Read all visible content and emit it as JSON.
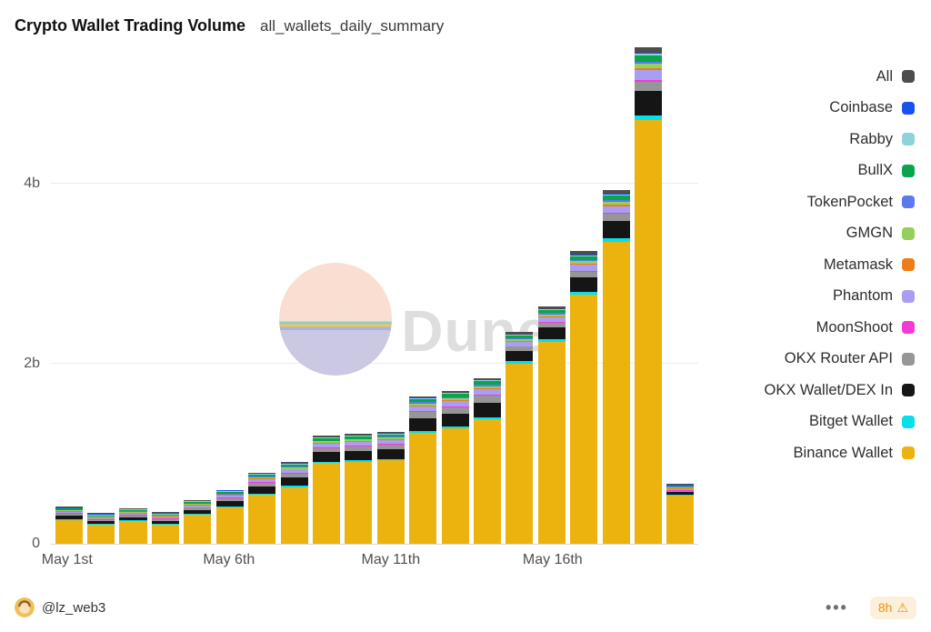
{
  "header": {
    "title": "Crypto Wallet Trading Volume",
    "subtitle": "all_wallets_daily_summary"
  },
  "watermark": {
    "text": "Dune"
  },
  "footer": {
    "author": "@lz_web3",
    "menu_dots": "•••",
    "refresh_badge": {
      "text": "8h",
      "icon": "⚠"
    }
  },
  "chart_data": {
    "type": "bar",
    "stacked": true,
    "title": "Crypto Wallet Trading Volume",
    "subtitle": "all_wallets_daily_summary",
    "unit": "billions USD (b)",
    "grid": "horizontal",
    "legend_position": "right",
    "ylim": [
      0,
      5.6
    ],
    "y_ticks": [
      {
        "value": 0,
        "label": "0"
      },
      {
        "value": 2,
        "label": "2b"
      },
      {
        "value": 4,
        "label": "4b"
      }
    ],
    "x_tick_labels": [
      {
        "index": 0,
        "label": "May 1st"
      },
      {
        "index": 5,
        "label": "May 6th"
      },
      {
        "index": 10,
        "label": "May 11th"
      },
      {
        "index": 15,
        "label": "May 16th"
      }
    ],
    "categories": [
      "May 1",
      "May 2",
      "May 3",
      "May 4",
      "May 5",
      "May 6",
      "May 7",
      "May 8",
      "May 9",
      "May 10",
      "May 11",
      "May 12",
      "May 13",
      "May 14",
      "May 15",
      "May 16",
      "May 17",
      "May 18",
      "May 19",
      "May 20"
    ],
    "approx_daily_totals_b": [
      0.38,
      0.3,
      0.36,
      0.31,
      0.46,
      0.58,
      0.78,
      0.9,
      1.18,
      1.2,
      1.22,
      1.62,
      1.68,
      1.82,
      2.3,
      2.58,
      3.18,
      3.85,
      5.4,
      0.62
    ],
    "legend_order_top_to_bottom": [
      "All",
      "Coinbase",
      "Rabby",
      "BullX",
      "TokenPocket",
      "GMGN",
      "Metamask",
      "Phantom",
      "MoonShoot",
      "OKX Router API",
      "OKX Wallet/DEX In",
      "Bitget Wallet",
      "Binance Wallet"
    ],
    "series": [
      {
        "name": "Binance Wallet",
        "color": "#ecb30e",
        "values": [
          0.266,
          0.21,
          0.252,
          0.217,
          0.322,
          0.406,
          0.546,
          0.63,
          0.897,
          0.912,
          0.927,
          1.231,
          1.277,
          1.383,
          2.001,
          2.245,
          2.767,
          3.35,
          4.698,
          0.539
        ]
      },
      {
        "name": "Bitget Wallet",
        "color": "#06e0ea",
        "values": [
          0.006,
          0.005,
          0.005,
          0.005,
          0.007,
          0.009,
          0.012,
          0.014,
          0.014,
          0.014,
          0.015,
          0.019,
          0.02,
          0.022,
          0.023,
          0.026,
          0.032,
          0.039,
          0.054,
          0.006
        ]
      },
      {
        "name": "OKX Wallet/DEX In",
        "color": "#151515",
        "values": [
          0.038,
          0.03,
          0.036,
          0.031,
          0.046,
          0.058,
          0.078,
          0.09,
          0.106,
          0.108,
          0.11,
          0.146,
          0.151,
          0.164,
          0.115,
          0.129,
          0.159,
          0.193,
          0.27,
          0.031
        ]
      },
      {
        "name": "OKX Router API",
        "color": "#969696",
        "values": [
          0.019,
          0.015,
          0.018,
          0.016,
          0.023,
          0.029,
          0.039,
          0.045,
          0.047,
          0.048,
          0.049,
          0.065,
          0.067,
          0.073,
          0.046,
          0.052,
          0.064,
          0.077,
          0.108,
          0.012
        ]
      },
      {
        "name": "MoonShoot",
        "color": "#f23ad6",
        "values": [
          0.002,
          0.002,
          0.002,
          0.002,
          0.002,
          0.003,
          0.004,
          0.005,
          0.005,
          0.005,
          0.005,
          0.006,
          0.007,
          0.007,
          0.007,
          0.008,
          0.01,
          0.012,
          0.016,
          0.002
        ]
      },
      {
        "name": "Phantom",
        "color": "#a99ef1",
        "values": [
          0.015,
          0.012,
          0.014,
          0.012,
          0.018,
          0.023,
          0.031,
          0.036,
          0.041,
          0.042,
          0.043,
          0.057,
          0.059,
          0.064,
          0.046,
          0.052,
          0.064,
          0.077,
          0.108,
          0.012
        ]
      },
      {
        "name": "Metamask",
        "color": "#ee7c18",
        "values": [
          0.004,
          0.003,
          0.004,
          0.003,
          0.005,
          0.006,
          0.008,
          0.009,
          0.009,
          0.01,
          0.01,
          0.013,
          0.013,
          0.015,
          0.012,
          0.013,
          0.016,
          0.019,
          0.027,
          0.003
        ]
      },
      {
        "name": "GMGN",
        "color": "#97cf5e",
        "values": [
          0.006,
          0.005,
          0.005,
          0.005,
          0.007,
          0.009,
          0.012,
          0.014,
          0.014,
          0.014,
          0.015,
          0.019,
          0.02,
          0.022,
          0.018,
          0.021,
          0.025,
          0.031,
          0.043,
          0.005
        ]
      },
      {
        "name": "TokenPocket",
        "color": "#5b79f0",
        "values": [
          0.004,
          0.003,
          0.004,
          0.003,
          0.005,
          0.006,
          0.008,
          0.009,
          0.009,
          0.01,
          0.01,
          0.013,
          0.013,
          0.015,
          0.012,
          0.013,
          0.016,
          0.019,
          0.027,
          0.003
        ]
      },
      {
        "name": "BullX",
        "color": "#0aa44c",
        "values": [
          0.011,
          0.009,
          0.011,
          0.009,
          0.014,
          0.017,
          0.023,
          0.027,
          0.024,
          0.024,
          0.024,
          0.032,
          0.034,
          0.036,
          0.028,
          0.031,
          0.038,
          0.046,
          0.065,
          0.007
        ]
      },
      {
        "name": "Rabby",
        "color": "#8ed2da",
        "values": [
          0.004,
          0.003,
          0.004,
          0.003,
          0.005,
          0.006,
          0.008,
          0.009,
          0.007,
          0.007,
          0.007,
          0.01,
          0.01,
          0.011,
          0.009,
          0.01,
          0.013,
          0.015,
          0.022,
          0.002
        ]
      },
      {
        "name": "Coinbase",
        "color": "#1652f0",
        "values": [
          0.002,
          0.002,
          0.002,
          0.002,
          0.002,
          0.003,
          0.004,
          0.005,
          0.005,
          0.005,
          0.005,
          0.006,
          0.007,
          0.007,
          0.007,
          0.008,
          0.01,
          0.012,
          0.016,
          0.002
        ]
      },
      {
        "name": "All",
        "color": "#4d4d4d",
        "values": [
          0.004,
          0.003,
          0.004,
          0.003,
          0.005,
          0.006,
          0.008,
          0.009,
          0.013,
          0.013,
          0.013,
          0.018,
          0.018,
          0.02,
          0.023,
          0.026,
          0.032,
          0.039,
          0.054,
          0.006
        ]
      }
    ]
  }
}
